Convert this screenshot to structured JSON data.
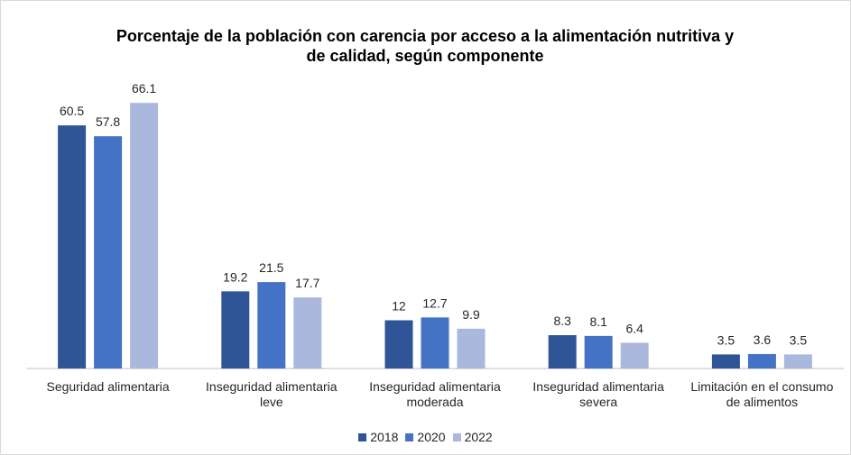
{
  "chart_data": {
    "type": "bar",
    "title": "Porcentaje de la población con carencia por acceso a la alimentación nutritiva y de calidad, según componente",
    "categories": [
      "Seguridad alimentaria",
      "Inseguridad alimentaria leve",
      "Inseguridad alimentaria moderada",
      "Inseguridad alimentaria severa",
      "Limitación en el consumo de alimentos"
    ],
    "series": [
      {
        "name": "2018",
        "color": "#2f5597",
        "values": [
          60.5,
          19.2,
          12,
          8.3,
          3.5
        ]
      },
      {
        "name": "2020",
        "color": "#4472c4",
        "values": [
          57.8,
          21.5,
          12.7,
          8.1,
          3.6
        ]
      },
      {
        "name": "2022",
        "color": "#a9b8dc",
        "values": [
          66.1,
          17.7,
          9.9,
          6.4,
          3.5
        ]
      }
    ],
    "legend": "bottom"
  }
}
